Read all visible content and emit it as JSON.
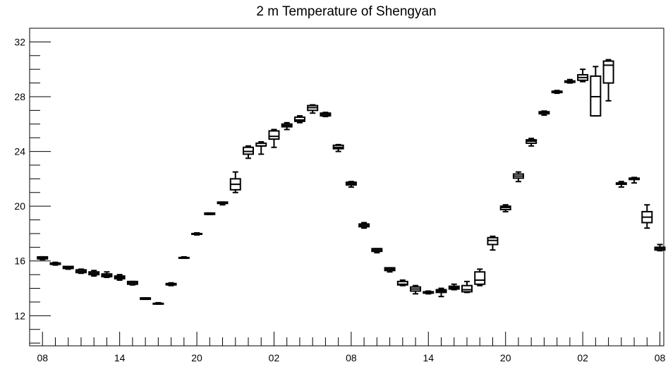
{
  "chart_data": {
    "type": "box",
    "title": "2 m Temperature of Shengyan",
    "xlabel": "",
    "ylabel": "",
    "ylim": [
      9.8,
      33.0
    ],
    "y_ticks": [
      12,
      16,
      20,
      24,
      28,
      32
    ],
    "x_tick_labels": [
      "08",
      "14",
      "20",
      "02",
      "08",
      "14",
      "20",
      "02",
      "08"
    ],
    "x_tick_hours": [
      0,
      6,
      12,
      18,
      24,
      30,
      36,
      42,
      48
    ],
    "x_range_hours": [
      -1,
      48.3
    ],
    "grid": false,
    "boxes": [
      {
        "hour": 0,
        "min": 16.1,
        "q1": 16.15,
        "median": 16.2,
        "q3": 16.3,
        "max": 16.3
      },
      {
        "hour": 1,
        "min": 15.7,
        "q1": 15.75,
        "median": 15.8,
        "q3": 15.85,
        "max": 15.9
      },
      {
        "hour": 2,
        "min": 15.4,
        "q1": 15.45,
        "median": 15.5,
        "q3": 15.6,
        "max": 15.6
      },
      {
        "hour": 3,
        "min": 15.1,
        "q1": 15.15,
        "median": 15.25,
        "q3": 15.35,
        "max": 15.4
      },
      {
        "hour": 4,
        "min": 14.9,
        "q1": 15.0,
        "median": 15.1,
        "q3": 15.2,
        "max": 15.3
      },
      {
        "hour": 5,
        "min": 14.8,
        "q1": 14.85,
        "median": 14.95,
        "q3": 15.05,
        "max": 15.2
      },
      {
        "hour": 6,
        "min": 14.6,
        "q1": 14.7,
        "median": 14.8,
        "q3": 14.9,
        "max": 15.0
      },
      {
        "hour": 7,
        "min": 14.25,
        "q1": 14.3,
        "median": 14.4,
        "q3": 14.5,
        "max": 14.5
      },
      {
        "hour": 8,
        "min": 13.2,
        "q1": 13.2,
        "median": 13.25,
        "q3": 13.3,
        "max": 13.3
      },
      {
        "hour": 9,
        "min": 12.85,
        "q1": 12.85,
        "median": 12.9,
        "q3": 12.9,
        "max": 12.95
      },
      {
        "hour": 10,
        "min": 14.2,
        "q1": 14.25,
        "median": 14.3,
        "q3": 14.35,
        "max": 14.4
      },
      {
        "hour": 11,
        "min": 16.2,
        "q1": 16.2,
        "median": 16.25,
        "q3": 16.25,
        "max": 16.3
      },
      {
        "hour": 12,
        "min": 17.9,
        "q1": 17.95,
        "median": 18.0,
        "q3": 18.0,
        "max": 18.05
      },
      {
        "hour": 13,
        "min": 19.4,
        "q1": 19.4,
        "median": 19.45,
        "q3": 19.5,
        "max": 19.5
      },
      {
        "hour": 14,
        "min": 20.1,
        "q1": 20.2,
        "median": 20.25,
        "q3": 20.3,
        "max": 20.3
      },
      {
        "hour": 15,
        "min": 21.0,
        "q1": 21.2,
        "median": 21.6,
        "q3": 22.0,
        "max": 22.5
      },
      {
        "hour": 16,
        "min": 23.5,
        "q1": 23.8,
        "median": 24.0,
        "q3": 24.3,
        "max": 24.4
      },
      {
        "hour": 17,
        "min": 23.8,
        "q1": 24.4,
        "median": 24.4,
        "q3": 24.6,
        "max": 24.7
      },
      {
        "hour": 18,
        "min": 24.3,
        "q1": 24.9,
        "median": 25.1,
        "q3": 25.5,
        "max": 25.6
      },
      {
        "hour": 19,
        "min": 25.6,
        "q1": 25.8,
        "median": 25.9,
        "q3": 26.0,
        "max": 26.1
      },
      {
        "hour": 20,
        "min": 26.1,
        "q1": 26.2,
        "median": 26.3,
        "q3": 26.5,
        "max": 26.6
      },
      {
        "hour": 21,
        "min": 26.8,
        "q1": 27.0,
        "median": 27.2,
        "q3": 27.35,
        "max": 27.4
      },
      {
        "hour": 22,
        "min": 26.55,
        "q1": 26.6,
        "median": 26.7,
        "q3": 26.8,
        "max": 26.85
      },
      {
        "hour": 23,
        "min": 24.0,
        "q1": 24.2,
        "median": 24.3,
        "q3": 24.45,
        "max": 24.5
      },
      {
        "hour": 24,
        "min": 21.4,
        "q1": 21.55,
        "median": 21.65,
        "q3": 21.75,
        "max": 21.8
      },
      {
        "hour": 25,
        "min": 18.4,
        "q1": 18.5,
        "median": 18.6,
        "q3": 18.7,
        "max": 18.8
      },
      {
        "hour": 26,
        "min": 16.6,
        "q1": 16.7,
        "median": 16.8,
        "q3": 16.9,
        "max": 16.9
      },
      {
        "hour": 27,
        "min": 15.2,
        "q1": 15.3,
        "median": 15.4,
        "q3": 15.5,
        "max": 15.5
      },
      {
        "hour": 28,
        "min": 14.2,
        "q1": 14.25,
        "median": 14.3,
        "q3": 14.5,
        "max": 14.6
      },
      {
        "hour": 29,
        "min": 13.6,
        "q1": 13.8,
        "median": 13.95,
        "q3": 14.1,
        "max": 14.2
      },
      {
        "hour": 30,
        "min": 13.6,
        "q1": 13.65,
        "median": 13.7,
        "q3": 13.75,
        "max": 13.8
      },
      {
        "hour": 31,
        "min": 13.4,
        "q1": 13.7,
        "median": 13.8,
        "q3": 13.9,
        "max": 14.0
      },
      {
        "hour": 32,
        "min": 13.9,
        "q1": 13.95,
        "median": 14.05,
        "q3": 14.15,
        "max": 14.3
      },
      {
        "hour": 33,
        "min": 13.7,
        "q1": 13.75,
        "median": 13.9,
        "q3": 14.2,
        "max": 14.5
      },
      {
        "hour": 34,
        "min": 14.2,
        "q1": 14.3,
        "median": 14.6,
        "q3": 15.2,
        "max": 15.4
      },
      {
        "hour": 35,
        "min": 16.8,
        "q1": 17.2,
        "median": 17.5,
        "q3": 17.7,
        "max": 17.8
      },
      {
        "hour": 36,
        "min": 19.6,
        "q1": 19.75,
        "median": 19.9,
        "q3": 20.0,
        "max": 20.1
      },
      {
        "hour": 37,
        "min": 21.8,
        "q1": 22.05,
        "median": 22.2,
        "q3": 22.35,
        "max": 22.5
      },
      {
        "hour": 38,
        "min": 24.4,
        "q1": 24.6,
        "median": 24.75,
        "q3": 24.85,
        "max": 24.95
      },
      {
        "hour": 39,
        "min": 26.65,
        "q1": 26.75,
        "median": 26.85,
        "q3": 26.9,
        "max": 26.95
      },
      {
        "hour": 40,
        "min": 28.25,
        "q1": 28.3,
        "median": 28.35,
        "q3": 28.4,
        "max": 28.45
      },
      {
        "hour": 41,
        "min": 29.0,
        "q1": 29.05,
        "median": 29.1,
        "q3": 29.15,
        "max": 29.25
      },
      {
        "hour": 42,
        "min": 29.1,
        "q1": 29.2,
        "median": 29.4,
        "q3": 29.6,
        "max": 30.0
      },
      {
        "hour": 43,
        "min": 26.6,
        "q1": 26.6,
        "median": 28.0,
        "q3": 29.5,
        "max": 30.2
      },
      {
        "hour": 44,
        "min": 27.7,
        "q1": 29.0,
        "median": 30.3,
        "q3": 30.6,
        "max": 30.7
      },
      {
        "hour": 45,
        "min": 21.4,
        "q1": 21.6,
        "median": 21.65,
        "q3": 21.7,
        "max": 21.8
      },
      {
        "hour": 46,
        "min": 21.7,
        "q1": 21.95,
        "median": 22.0,
        "q3": 22.05,
        "max": 22.1
      },
      {
        "hour": 47,
        "min": 18.4,
        "q1": 18.8,
        "median": 19.2,
        "q3": 19.6,
        "max": 20.1
      },
      {
        "hour": 48,
        "min": 16.75,
        "q1": 16.8,
        "median": 16.9,
        "q3": 17.0,
        "max": 17.2
      }
    ]
  }
}
